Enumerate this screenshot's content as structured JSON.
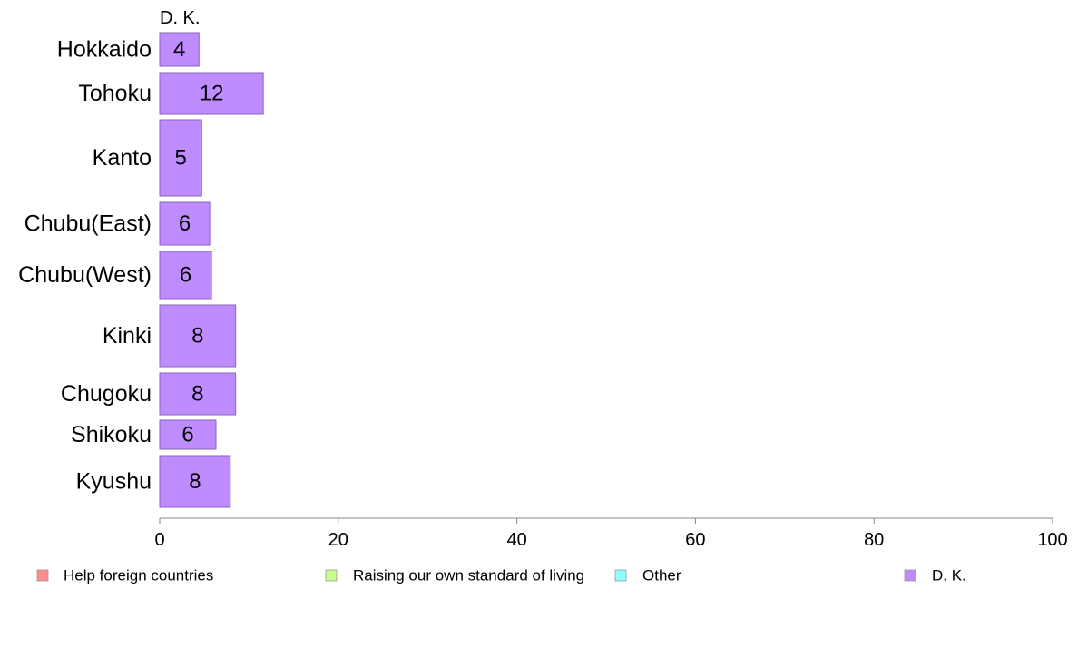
{
  "chart_data": {
    "type": "bar",
    "orientation": "horizontal",
    "panel_label": "D. K.",
    "categories": [
      "Hokkaido",
      "Tohoku",
      "Kanto",
      "Chubu(East)",
      "Chubu(West)",
      "Kinki",
      "Chugoku",
      "Shikoku",
      "Kyushu"
    ],
    "series": [
      {
        "name": "D. K.",
        "color": "#bf8cff",
        "values": [
          4,
          12,
          5,
          6,
          6,
          8,
          8,
          6,
          8
        ],
        "display_values": [
          4.4,
          11.6,
          4.7,
          5.6,
          5.8,
          8.5,
          8.5,
          6.3,
          7.9
        ]
      }
    ],
    "xlim": [
      0,
      100
    ],
    "xticks": [
      0,
      20,
      40,
      60,
      80,
      100
    ],
    "grid": false,
    "legend": {
      "position": "bottom",
      "items": [
        {
          "label": "Help foreign countries",
          "color": "#ff8c8c"
        },
        {
          "label": "Raising our own standard of living",
          "color": "#c8ff8c"
        },
        {
          "label": "Other",
          "color": "#8cffff"
        },
        {
          "label": "D. K.",
          "color": "#bf8cff"
        }
      ]
    },
    "bar_border_color": "#8a64b8",
    "axis_color": "#888888"
  }
}
